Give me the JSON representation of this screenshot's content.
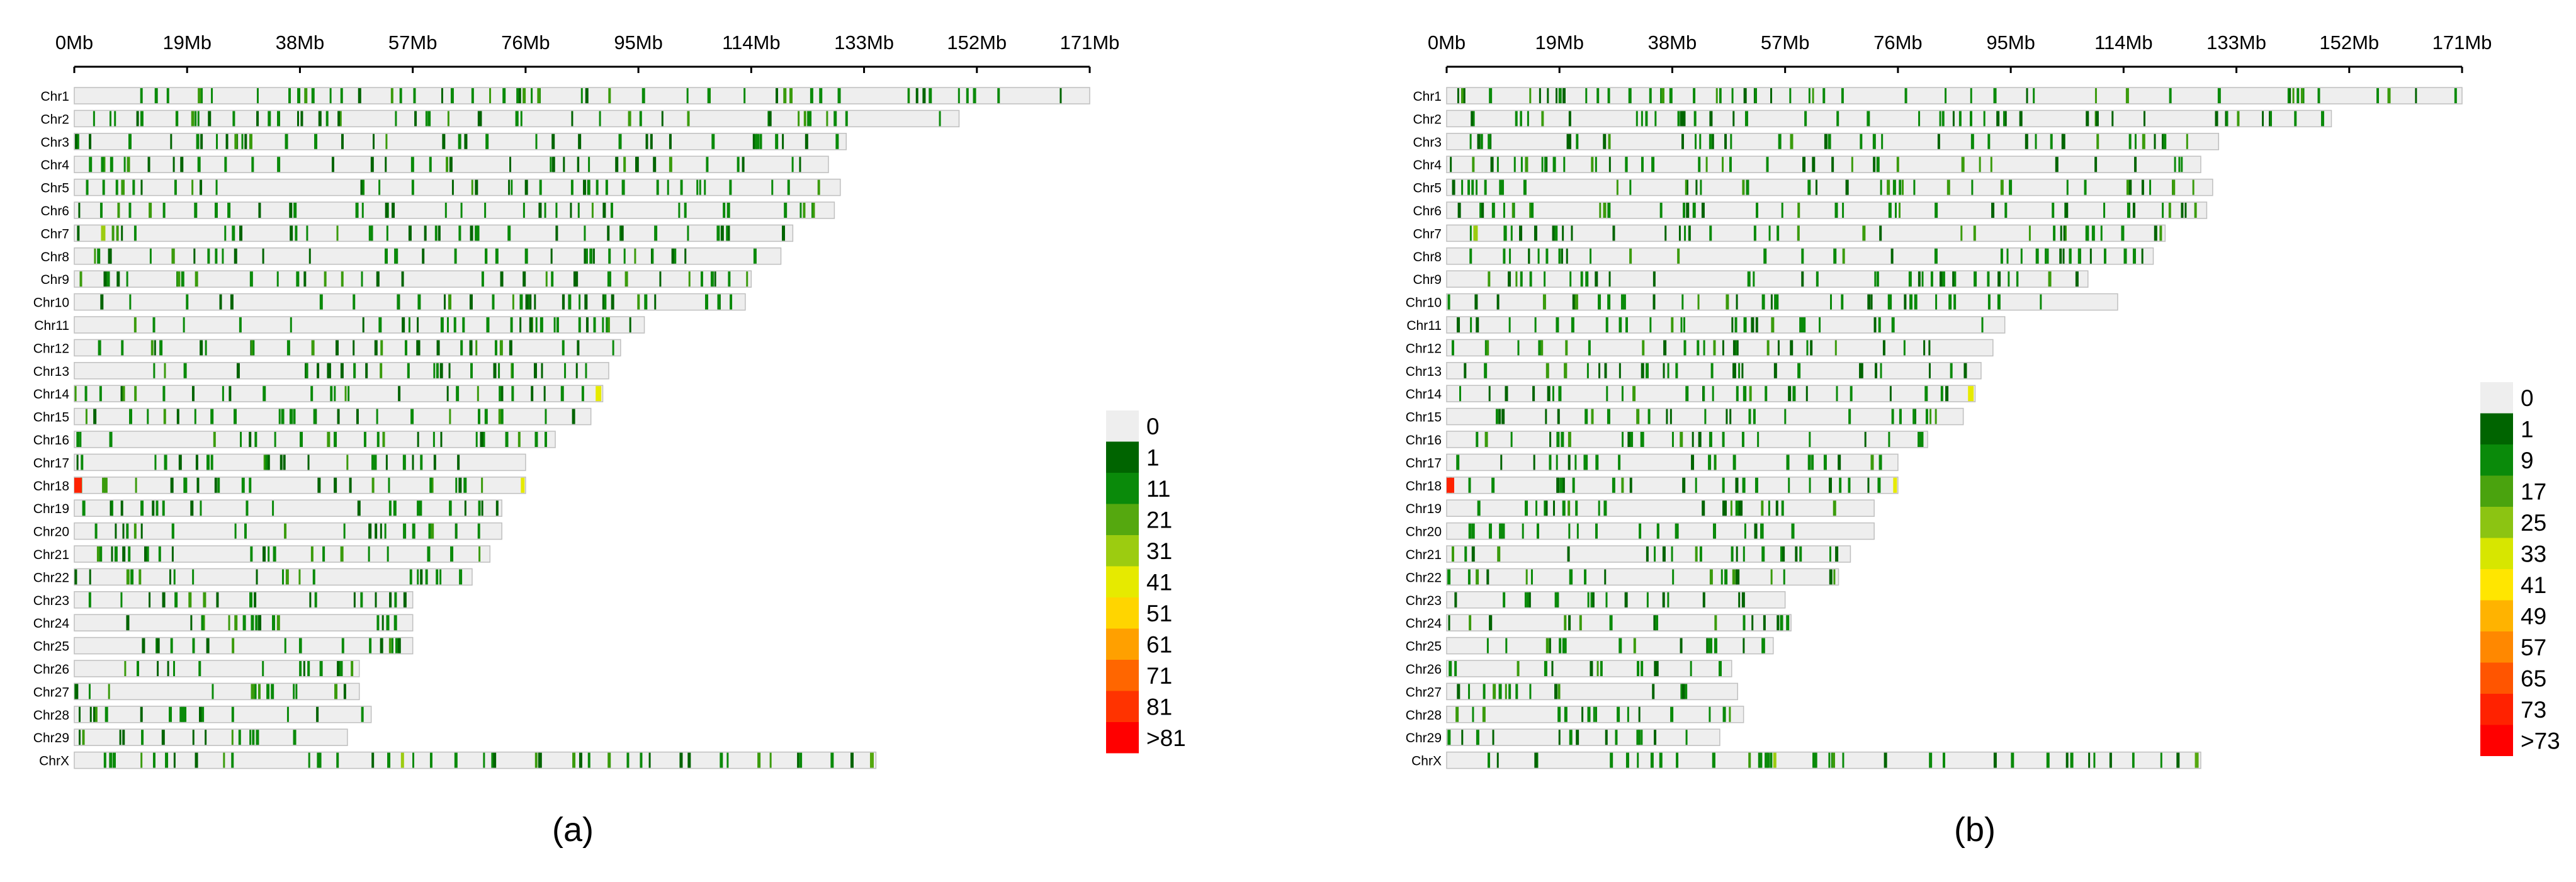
{
  "chart_data": [
    {
      "type": "heatmap",
      "panel_label": "(a)",
      "axis_ticks": [
        "0Mb",
        "19Mb",
        "38Mb",
        "57Mb",
        "76Mb",
        "95Mb",
        "114Mb",
        "133Mb",
        "152Mb",
        "171Mb"
      ],
      "axis_range_mb": [
        0,
        171
      ],
      "legend": {
        "labels": [
          "0",
          "1",
          "11",
          "21",
          "31",
          "41",
          "51",
          "61",
          "71",
          "81",
          ">81"
        ],
        "colors": [
          "#eeeeee",
          "#006400",
          "#0a8a0a",
          "#55a80f",
          "#9ccc10",
          "#e6ea00",
          "#ffd500",
          "#ffa000",
          "#ff6600",
          "#ff3300",
          "#ff0000"
        ]
      },
      "chromosomes": [
        {
          "name": "Chr1",
          "length_mb": 171
        },
        {
          "name": "Chr2",
          "length_mb": 149
        },
        {
          "name": "Chr3",
          "length_mb": 130
        },
        {
          "name": "Chr4",
          "length_mb": 127
        },
        {
          "name": "Chr5",
          "length_mb": 129
        },
        {
          "name": "Chr6",
          "length_mb": 128
        },
        {
          "name": "Chr7",
          "length_mb": 121
        },
        {
          "name": "Chr8",
          "length_mb": 119
        },
        {
          "name": "Chr9",
          "length_mb": 114
        },
        {
          "name": "Chr10",
          "length_mb": 113
        },
        {
          "name": "Chr11",
          "length_mb": 96
        },
        {
          "name": "Chr12",
          "length_mb": 92
        },
        {
          "name": "Chr13",
          "length_mb": 90
        },
        {
          "name": "Chr14",
          "length_mb": 89
        },
        {
          "name": "Chr15",
          "length_mb": 87
        },
        {
          "name": "Chr16",
          "length_mb": 81
        },
        {
          "name": "Chr17",
          "length_mb": 76
        },
        {
          "name": "Chr18",
          "length_mb": 76
        },
        {
          "name": "Chr19",
          "length_mb": 72
        },
        {
          "name": "Chr20",
          "length_mb": 72
        },
        {
          "name": "Chr21",
          "length_mb": 70
        },
        {
          "name": "Chr22",
          "length_mb": 67
        },
        {
          "name": "Chr23",
          "length_mb": 57
        },
        {
          "name": "Chr24",
          "length_mb": 57
        },
        {
          "name": "Chr25",
          "length_mb": 57
        },
        {
          "name": "Chr26",
          "length_mb": 48
        },
        {
          "name": "Chr27",
          "length_mb": 48
        },
        {
          "name": "Chr28",
          "length_mb": 50
        },
        {
          "name": "Chr29",
          "length_mb": 46
        },
        {
          "name": "ChrX",
          "length_mb": 135
        }
      ]
    },
    {
      "type": "heatmap",
      "panel_label": "(b)",
      "axis_ticks": [
        "0Mb",
        "19Mb",
        "38Mb",
        "57Mb",
        "76Mb",
        "95Mb",
        "114Mb",
        "133Mb",
        "152Mb",
        "171Mb"
      ],
      "axis_range_mb": [
        0,
        171
      ],
      "legend": {
        "labels": [
          "0",
          "1",
          "9",
          "17",
          "25",
          "33",
          "41",
          "49",
          "57",
          "65",
          "73",
          ">73"
        ],
        "colors": [
          "#eeeeee",
          "#006400",
          "#0a8a0a",
          "#4aa30e",
          "#8cc412",
          "#d7e600",
          "#ffe600",
          "#ffb300",
          "#ff8800",
          "#ff5500",
          "#ff2200",
          "#ff0000"
        ]
      },
      "chromosomes": [
        {
          "name": "Chr1",
          "length_mb": 171
        },
        {
          "name": "Chr2",
          "length_mb": 149
        },
        {
          "name": "Chr3",
          "length_mb": 130
        },
        {
          "name": "Chr4",
          "length_mb": 127
        },
        {
          "name": "Chr5",
          "length_mb": 129
        },
        {
          "name": "Chr6",
          "length_mb": 128
        },
        {
          "name": "Chr7",
          "length_mb": 121
        },
        {
          "name": "Chr8",
          "length_mb": 119
        },
        {
          "name": "Chr9",
          "length_mb": 108
        },
        {
          "name": "Chr10",
          "length_mb": 113
        },
        {
          "name": "Chr11",
          "length_mb": 94
        },
        {
          "name": "Chr12",
          "length_mb": 92
        },
        {
          "name": "Chr13",
          "length_mb": 90
        },
        {
          "name": "Chr14",
          "length_mb": 89
        },
        {
          "name": "Chr15",
          "length_mb": 87
        },
        {
          "name": "Chr16",
          "length_mb": 81
        },
        {
          "name": "Chr17",
          "length_mb": 76
        },
        {
          "name": "Chr18",
          "length_mb": 76
        },
        {
          "name": "Chr19",
          "length_mb": 72
        },
        {
          "name": "Chr20",
          "length_mb": 72
        },
        {
          "name": "Chr21",
          "length_mb": 68
        },
        {
          "name": "Chr22",
          "length_mb": 66
        },
        {
          "name": "Chr23",
          "length_mb": 57
        },
        {
          "name": "Chr24",
          "length_mb": 58
        },
        {
          "name": "Chr25",
          "length_mb": 55
        },
        {
          "name": "Chr26",
          "length_mb": 48
        },
        {
          "name": "Chr27",
          "length_mb": 49
        },
        {
          "name": "Chr28",
          "length_mb": 50
        },
        {
          "name": "Chr29",
          "length_mb": 46
        },
        {
          "name": "ChrX",
          "length_mb": 127
        }
      ]
    }
  ]
}
